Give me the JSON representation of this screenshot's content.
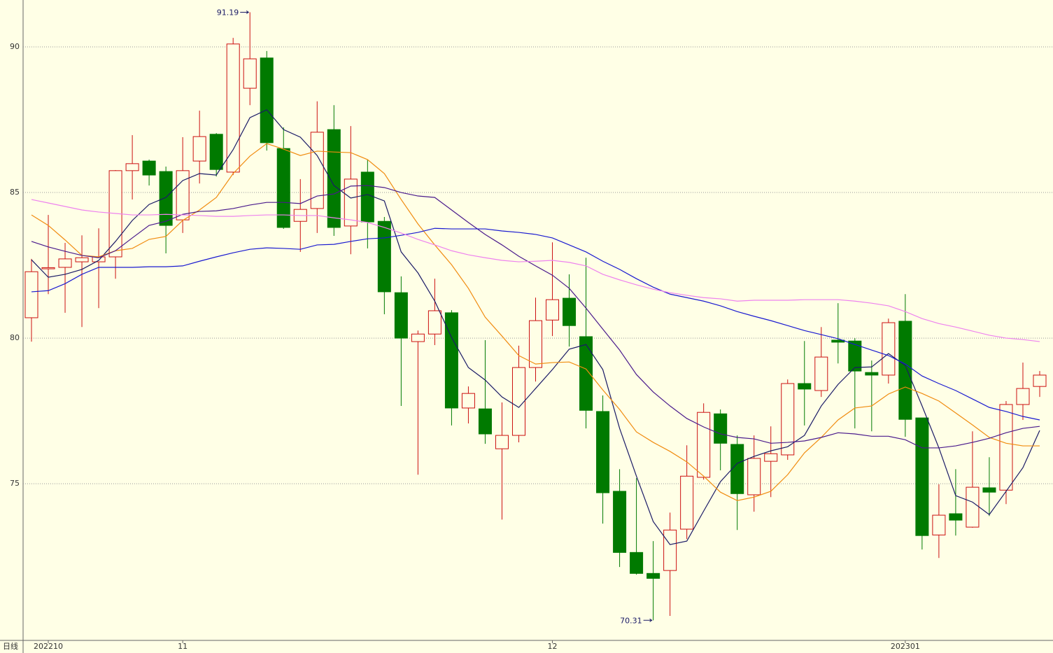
{
  "chart_data": {
    "type": "candlestick",
    "period_label": "日线",
    "categories": [
      null,
      "202210",
      null,
      null,
      null,
      null,
      null,
      null,
      null,
      "11",
      null,
      null,
      null,
      null,
      null,
      null,
      null,
      null,
      null,
      null,
      null,
      null,
      null,
      null,
      null,
      null,
      null,
      null,
      null,
      null,
      null,
      "12",
      null,
      null,
      null,
      null,
      null,
      null,
      null,
      null,
      null,
      null,
      null,
      null,
      null,
      null,
      null,
      null,
      null,
      null,
      null,
      null,
      "202301",
      null,
      null,
      null,
      null,
      null,
      null,
      null,
      null
    ],
    "open": [
      80.7,
      82.38,
      82.43,
      82.62,
      82.62,
      82.79,
      85.75,
      86.08,
      85.72,
      84.06,
      86.08,
      87.0,
      85.7,
      88.58,
      89.62,
      86.51,
      84.01,
      84.45,
      87.16,
      83.85,
      85.7,
      84.01,
      81.56,
      79.88,
      80.14,
      80.87,
      77.6,
      77.57,
      76.2,
      76.66,
      78.99,
      80.62,
      81.37,
      80.05,
      77.48,
      74.74,
      72.64,
      71.92,
      72.02,
      73.44,
      75.22,
      77.4,
      76.35,
      74.62,
      75.77,
      75.99,
      78.44,
      78.2,
      79.93,
      79.9,
      78.82,
      78.73,
      80.58,
      77.26,
      73.24,
      73.97,
      73.51,
      74.86,
      74.78,
      77.72,
      78.34
    ],
    "high": [
      82.72,
      84.23,
      83.27,
      83.53,
      83.77,
      85.77,
      86.97,
      86.13,
      85.89,
      86.9,
      87.81,
      87.04,
      90.31,
      91.19,
      89.86,
      87.24,
      85.46,
      88.13,
      88.0,
      87.28,
      86.13,
      84.16,
      82.12,
      80.26,
      82.04,
      80.96,
      78.34,
      79.93,
      77.79,
      79.74,
      81.39,
      83.29,
      82.19,
      82.76,
      78.03,
      75.5,
      75.19,
      73.03,
      74.01,
      76.32,
      77.76,
      77.55,
      76.66,
      76.66,
      76.97,
      78.58,
      79.9,
      80.38,
      81.2,
      80.0,
      79.23,
      80.67,
      81.51,
      77.26,
      74.98,
      75.5,
      76.8,
      75.91,
      77.84,
      79.16,
      78.87
    ],
    "low": [
      79.88,
      81.51,
      80.87,
      80.38,
      81.03,
      82.04,
      84.76,
      85.24,
      82.91,
      83.61,
      85.31,
      85.55,
      85.6,
      88.0,
      86.44,
      83.75,
      82.96,
      83.61,
      83.51,
      82.88,
      83.08,
      80.82,
      77.67,
      75.31,
      79.76,
      77.0,
      77.07,
      76.37,
      73.77,
      76.42,
      78.51,
      80.07,
      79.71,
      76.9,
      73.63,
      72.14,
      71.88,
      70.31,
      70.46,
      73.1,
      75.14,
      75.46,
      73.41,
      74.04,
      74.54,
      75.82,
      77.0,
      77.98,
      79.13,
      76.9,
      76.8,
      78.44,
      76.61,
      72.74,
      72.45,
      73.22,
      73.49,
      73.89,
      74.3,
      77.19,
      77.98
    ],
    "close": [
      82.28,
      82.42,
      82.72,
      82.76,
      82.79,
      85.75,
      85.99,
      85.6,
      83.87,
      85.75,
      86.92,
      85.79,
      90.1,
      89.59,
      86.71,
      83.8,
      84.42,
      87.07,
      83.8,
      85.46,
      83.99,
      81.59,
      80.0,
      80.14,
      80.94,
      77.6,
      78.1,
      76.71,
      76.66,
      78.99,
      80.6,
      81.32,
      80.43,
      77.52,
      74.69,
      72.64,
      71.92,
      71.75,
      73.41,
      75.26,
      77.45,
      76.39,
      74.66,
      75.87,
      76.03,
      78.44,
      78.25,
      79.35,
      79.86,
      78.87,
      78.73,
      80.53,
      77.21,
      73.22,
      73.92,
      73.75,
      74.88,
      74.71,
      77.72,
      78.27,
      78.73
    ],
    "up_color": "#cc1010",
    "down_color": "#007a00",
    "moving_averages": [
      {
        "color": "#1a1a66",
        "values": [
          82.69,
          82.09,
          82.19,
          82.36,
          82.67,
          83.32,
          84.04,
          84.59,
          84.83,
          85.41,
          85.65,
          85.6,
          86.47,
          87.57,
          87.84,
          87.16,
          86.9,
          86.27,
          85.24,
          84.81,
          84.93,
          84.71,
          82.96,
          82.24,
          81.27,
          80.02,
          78.99,
          78.56,
          77.98,
          77.62,
          78.27,
          78.92,
          79.62,
          79.78,
          78.92,
          76.9,
          75.26,
          73.7,
          72.91,
          73.03,
          74.06,
          75.07,
          75.7,
          75.94,
          76.13,
          76.27,
          76.66,
          77.67,
          78.41,
          78.99,
          79.01,
          79.47,
          79.06,
          77.67,
          76.23,
          74.59,
          74.37,
          73.94,
          74.74,
          75.55,
          76.83
        ]
      },
      {
        "color": "#f08c10",
        "values": [
          84.23,
          83.87,
          83.37,
          82.84,
          82.79,
          83.0,
          83.08,
          83.39,
          83.49,
          84.04,
          84.4,
          84.83,
          85.65,
          86.25,
          86.68,
          86.49,
          86.27,
          86.42,
          86.39,
          86.37,
          86.13,
          85.65,
          84.76,
          83.92,
          83.2,
          82.52,
          81.71,
          80.72,
          80.07,
          79.4,
          79.11,
          79.16,
          79.18,
          78.94,
          78.22,
          77.55,
          76.78,
          76.42,
          76.11,
          75.75,
          75.26,
          74.71,
          74.42,
          74.54,
          74.74,
          75.31,
          76.06,
          76.59,
          77.19,
          77.6,
          77.67,
          78.08,
          78.32,
          78.1,
          77.84,
          77.43,
          77.02,
          76.59,
          76.39,
          76.3,
          76.3
        ]
      },
      {
        "color": "#4a1a8c",
        "values": [
          83.32,
          83.13,
          82.98,
          82.84,
          82.76,
          83.0,
          83.44,
          83.87,
          84.01,
          84.25,
          84.35,
          84.37,
          84.45,
          84.57,
          84.66,
          84.66,
          84.62,
          84.88,
          84.95,
          85.22,
          85.24,
          85.17,
          85.0,
          84.88,
          84.83,
          84.4,
          83.97,
          83.56,
          83.2,
          82.81,
          82.48,
          82.16,
          81.71,
          81.03,
          80.31,
          79.59,
          78.75,
          78.15,
          77.67,
          77.24,
          76.95,
          76.71,
          76.59,
          76.54,
          76.39,
          76.42,
          76.47,
          76.59,
          76.75,
          76.71,
          76.63,
          76.63,
          76.51,
          76.23,
          76.23,
          76.3,
          76.42,
          76.56,
          76.75,
          76.9,
          76.97
        ]
      },
      {
        "color": "#1a1ad0",
        "values": [
          81.59,
          81.63,
          81.87,
          82.19,
          82.43,
          82.43,
          82.43,
          82.45,
          82.45,
          82.48,
          82.64,
          82.79,
          82.93,
          83.05,
          83.1,
          83.08,
          83.05,
          83.2,
          83.22,
          83.32,
          83.41,
          83.44,
          83.53,
          83.63,
          83.77,
          83.75,
          83.75,
          83.75,
          83.68,
          83.63,
          83.56,
          83.44,
          83.2,
          82.96,
          82.64,
          82.36,
          82.04,
          81.75,
          81.51,
          81.39,
          81.27,
          81.11,
          80.91,
          80.75,
          80.6,
          80.43,
          80.26,
          80.12,
          79.98,
          79.78,
          79.59,
          79.4,
          79.11,
          78.7,
          78.44,
          78.2,
          77.91,
          77.62,
          77.48,
          77.31,
          77.19
        ]
      },
      {
        "color": "#ee82ee",
        "values": [
          84.76,
          84.64,
          84.52,
          84.4,
          84.33,
          84.28,
          84.23,
          84.23,
          84.25,
          84.23,
          84.21,
          84.18,
          84.18,
          84.21,
          84.23,
          84.23,
          84.21,
          84.21,
          84.13,
          84.06,
          83.97,
          83.8,
          83.61,
          83.39,
          83.2,
          83.0,
          82.86,
          82.76,
          82.67,
          82.62,
          82.64,
          82.67,
          82.6,
          82.48,
          82.19,
          82.0,
          81.83,
          81.68,
          81.56,
          81.47,
          81.39,
          81.35,
          81.27,
          81.3,
          81.3,
          81.3,
          81.32,
          81.32,
          81.32,
          81.27,
          81.2,
          81.11,
          80.91,
          80.67,
          80.5,
          80.38,
          80.24,
          80.1,
          80.0,
          79.95,
          79.88
        ]
      }
    ],
    "ylim": [
      69.62,
      91.61
    ],
    "yticks": [
      75,
      80,
      85,
      90
    ],
    "grid": true
  }
}
